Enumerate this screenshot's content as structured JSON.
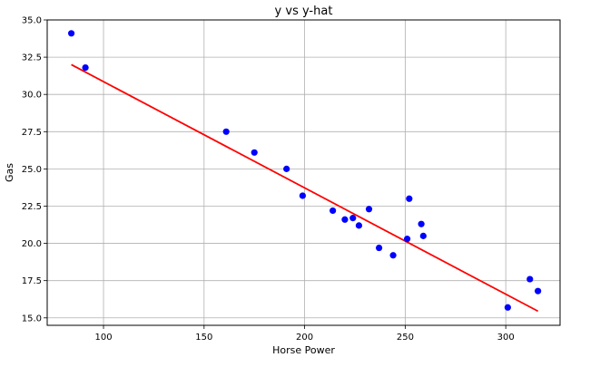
{
  "chart_data": {
    "type": "scatter",
    "title": "y vs y-hat",
    "xlabel": "Horse Power",
    "ylabel": "Gas",
    "xlim": [
      72,
      327
    ],
    "ylim": [
      14.5,
      35.0
    ],
    "grid": true,
    "x_ticks": [
      100,
      150,
      200,
      250,
      300
    ],
    "x_tick_labels": [
      "100",
      "150",
      "200",
      "250",
      "300"
    ],
    "y_ticks": [
      15.0,
      17.5,
      20.0,
      22.5,
      25.0,
      27.5,
      30.0,
      32.5,
      35.0
    ],
    "y_tick_labels": [
      "15.0",
      "17.5",
      "20.0",
      "22.5",
      "25.0",
      "27.5",
      "30.0",
      "32.5",
      "35.0"
    ],
    "series": [
      {
        "kind": "scatter",
        "color": "#0000ff",
        "points": [
          [
            84,
            34.1
          ],
          [
            91,
            31.8
          ],
          [
            161,
            27.5
          ],
          [
            175,
            26.1
          ],
          [
            191,
            25.0
          ],
          [
            199,
            23.2
          ],
          [
            214,
            22.2
          ],
          [
            220,
            21.6
          ],
          [
            224,
            21.7
          ],
          [
            227,
            21.2
          ],
          [
            232,
            22.3
          ],
          [
            237,
            19.7
          ],
          [
            244,
            19.2
          ],
          [
            251,
            20.3
          ],
          [
            252,
            23.0
          ],
          [
            258,
            21.3
          ],
          [
            259,
            20.5
          ],
          [
            301,
            15.7
          ],
          [
            312,
            17.6
          ],
          [
            316,
            16.8
          ]
        ]
      },
      {
        "kind": "line",
        "color": "#ff0000",
        "points": [
          [
            84,
            32.0
          ],
          [
            316,
            15.45
          ]
        ]
      }
    ]
  }
}
